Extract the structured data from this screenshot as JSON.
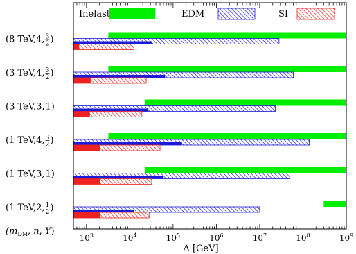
{
  "chart_data": {
    "type": "bar",
    "orientation": "horizontal",
    "title": "",
    "xlabel": "Λ [GeV]",
    "xscale": "log",
    "xlim": [
      500,
      1000000000
    ],
    "x_ticks": [
      {
        "value": 1000,
        "base": "10",
        "exp": "3"
      },
      {
        "value": 10000,
        "base": "10",
        "exp": "4"
      },
      {
        "value": 100000,
        "base": "10",
        "exp": "5"
      },
      {
        "value": 1000000,
        "base": "10",
        "exp": "6"
      },
      {
        "value": 10000000,
        "base": "10",
        "exp": "7"
      },
      {
        "value": 100000000,
        "base": "10",
        "exp": "8"
      },
      {
        "value": 1000000000,
        "base": "10",
        "exp": "9"
      }
    ],
    "y_axis_header": "(m_DM, n, Y)",
    "legend": {
      "placement": "top",
      "entries": [
        {
          "name": "Inelastic",
          "style": "solid-green"
        },
        {
          "name": "EDM",
          "style": "hatched-blue"
        },
        {
          "name": "SI",
          "style": "hatched-red"
        }
      ]
    },
    "colors": {
      "inelastic": "#00ee00",
      "edm_dark": "#1a1ad8",
      "edm_hatch": "#1a1ad8",
      "si_dark": "#ee2222",
      "si_hatch": "#ee2222"
    },
    "categories": [
      {
        "mass": "8 TeV",
        "n": "4",
        "y_num": "3",
        "y_den": "2"
      },
      {
        "mass": "3 TeV",
        "n": "4",
        "y_num": "3",
        "y_den": "2"
      },
      {
        "mass": "3 TeV",
        "n": "3",
        "y_num": "1",
        "y_den": ""
      },
      {
        "mass": "1 TeV",
        "n": "4",
        "y_num": "3",
        "y_den": "2"
      },
      {
        "mass": "1 TeV",
        "n": "3",
        "y_num": "1",
        "y_den": ""
      },
      {
        "mass": "1 TeV",
        "n": "2",
        "y_num": "1",
        "y_den": "2"
      }
    ],
    "series": [
      {
        "name": "Inelastic",
        "ranges": [
          [
            3200,
            1000000000
          ],
          [
            3200,
            1000000000
          ],
          [
            22000,
            1000000000
          ],
          [
            3200,
            1000000000
          ],
          [
            22000,
            1000000000
          ],
          [
            300000000,
            1000000000
          ]
        ]
      },
      {
        "name": "EDM",
        "solid_end": [
          32000,
          65000,
          27000,
          160000,
          58000,
          12500
        ],
        "ranges": [
          [
            500,
            28000000
          ],
          [
            500,
            60000000
          ],
          [
            500,
            23000000
          ],
          [
            500,
            140000000
          ],
          [
            500,
            50000000
          ],
          [
            500,
            10000000
          ]
        ]
      },
      {
        "name": "SI",
        "solid_end": [
          680,
          1250,
          1200,
          2100,
          2100,
          2100
        ],
        "ranges": [
          [
            500,
            12500
          ],
          [
            500,
            24000
          ],
          [
            500,
            19000
          ],
          [
            500,
            50000
          ],
          [
            500,
            32000
          ],
          [
            500,
            28000
          ]
        ]
      }
    ]
  }
}
